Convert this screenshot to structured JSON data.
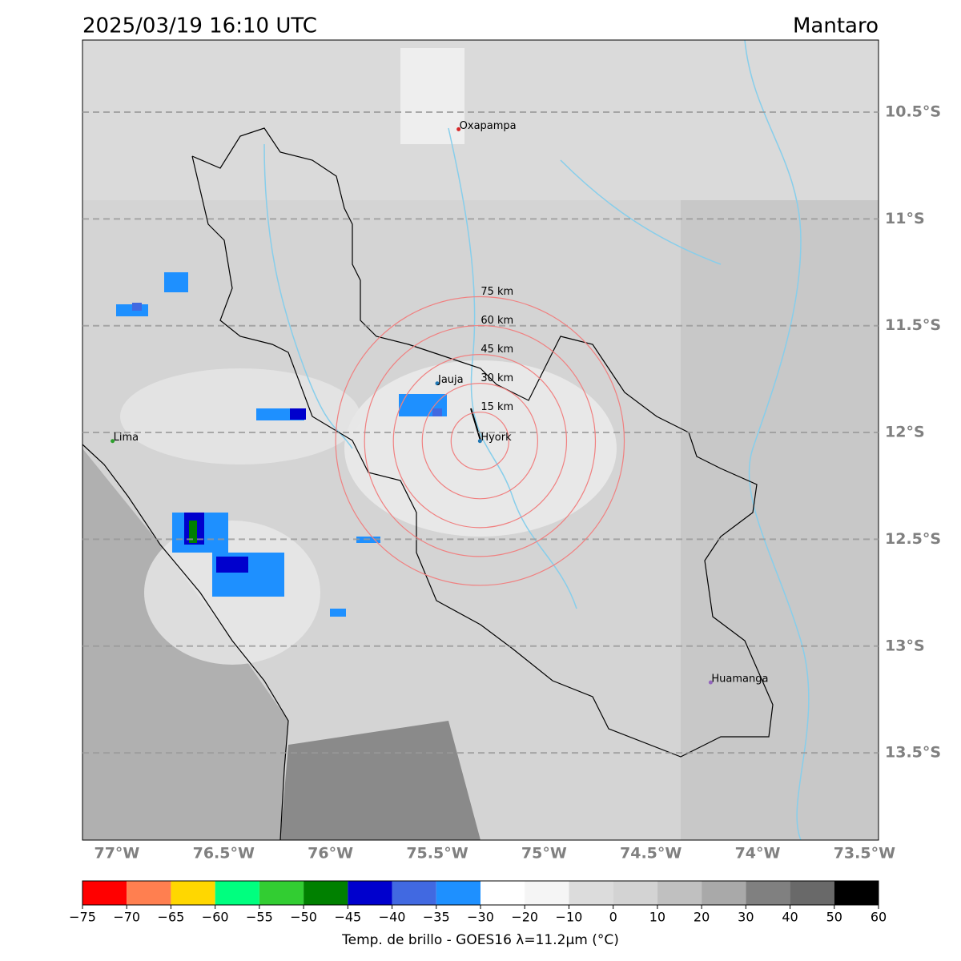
{
  "map": {
    "title": "2025/03/19 16:10 UTC",
    "region": "Mantaro",
    "lon_ticks": [
      {
        "value": -77,
        "label": "77°W"
      },
      {
        "value": -76.5,
        "label": "76.5°W"
      },
      {
        "value": -76,
        "label": "76°W"
      },
      {
        "value": -75.5,
        "label": "75.5°W"
      },
      {
        "value": -75,
        "label": "75°W"
      },
      {
        "value": -74.5,
        "label": "74.5°W"
      },
      {
        "value": -74,
        "label": "74°W"
      },
      {
        "value": -73.5,
        "label": "73.5°W"
      }
    ],
    "lat_ticks": [
      {
        "value": -10.5,
        "label": "10.5°S"
      },
      {
        "value": -11,
        "label": "11°S"
      },
      {
        "value": -11.5,
        "label": "11.5°S"
      },
      {
        "value": -12,
        "label": "12°S"
      },
      {
        "value": -12.5,
        "label": "12.5°S"
      },
      {
        "value": -13,
        "label": "13°S"
      },
      {
        "value": -13.5,
        "label": "13.5°S"
      }
    ],
    "places": [
      {
        "name": "Oxapampa",
        "lon": -75.4,
        "lat": -10.58,
        "color": "#d62728"
      },
      {
        "name": "Jauja",
        "lon": -75.5,
        "lat": -11.77,
        "color": "#1f77b4"
      },
      {
        "name": "Hyork",
        "lon": -75.3,
        "lat": -12.04,
        "color": "#1f77b4"
      },
      {
        "name": "Lima",
        "lon": -77.02,
        "lat": -12.04,
        "color": "#2ca02c"
      },
      {
        "name": "Huamanga",
        "lon": -74.22,
        "lat": -13.17,
        "color": "#9467bd"
      }
    ],
    "rings": [
      {
        "value": 15,
        "label": "15 km"
      },
      {
        "value": 30,
        "label": "30 km"
      },
      {
        "value": 45,
        "label": "45 km"
      },
      {
        "value": 60,
        "label": "60 km"
      },
      {
        "value": 75,
        "label": "75 km"
      }
    ],
    "colorbar": {
      "label": "Temp. de brillo - GOES16 λ=11.2μm (°C)",
      "ticks": [
        {
          "value": -75,
          "label": "−75"
        },
        {
          "value": -70,
          "label": "−70"
        },
        {
          "value": -65,
          "label": "−65"
        },
        {
          "value": -60,
          "label": "−60"
        },
        {
          "value": -55,
          "label": "−55"
        },
        {
          "value": -50,
          "label": "−50"
        },
        {
          "value": -45,
          "label": "−45"
        },
        {
          "value": -40,
          "label": "−40"
        },
        {
          "value": -35,
          "label": "−35"
        },
        {
          "value": -30,
          "label": "−30"
        },
        {
          "value": -20,
          "label": "−20"
        },
        {
          "value": -10,
          "label": "−10"
        },
        0,
        10,
        20,
        30,
        40,
        50,
        60
      ],
      "colors": [
        "#ff0000",
        "#ff7f50",
        "#ffd700",
        "#00ff7f",
        "#32cd32",
        "#008000",
        "#0000cd",
        "#4169e1",
        "#1e90ff",
        "#ffffff",
        "#f5f5f5",
        "#dcdcdc",
        "#d3d3d3",
        "#c0c0c0",
        "#a9a9a9",
        "#808080",
        "#696969",
        "#000000"
      ]
    }
  }
}
